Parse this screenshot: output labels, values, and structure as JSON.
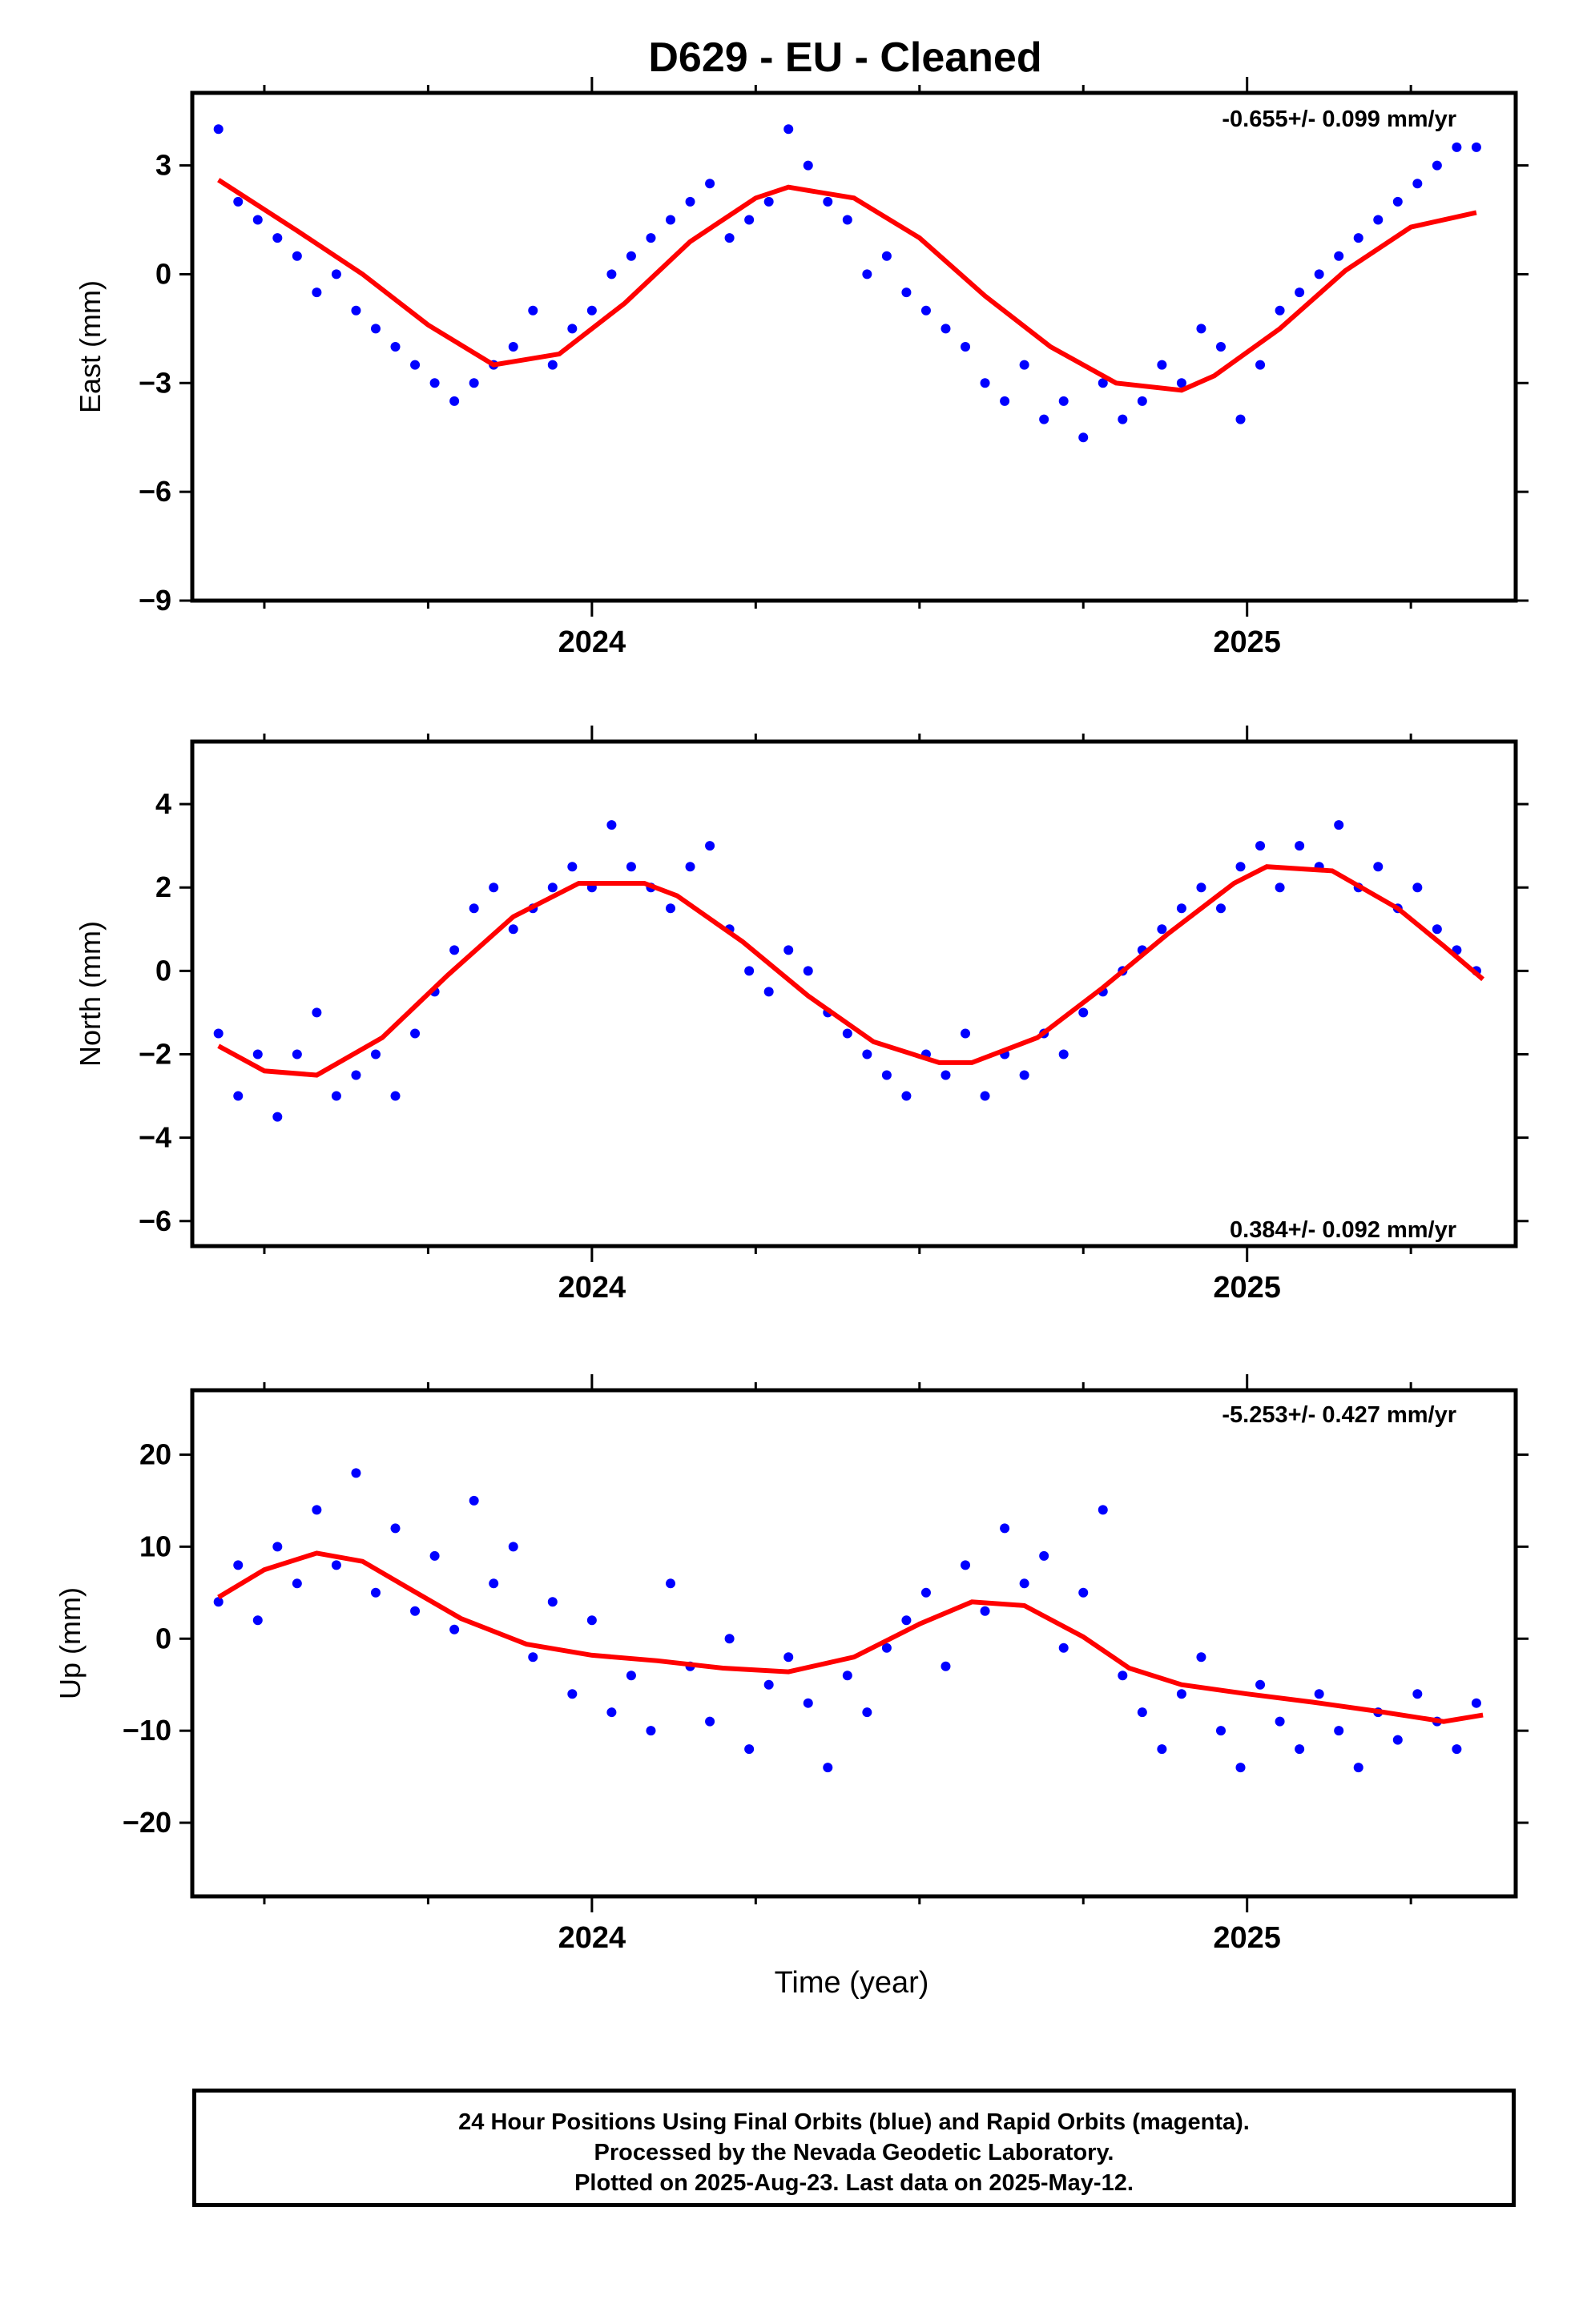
{
  "title": "D629  - EU - Cleaned",
  "footer": {
    "line1": "24 Hour Positions Using Final Orbits (blue) and Rapid Orbits (magenta).",
    "line2": "Processed by the Nevada Geodetic Laboratory.",
    "line3": "Plotted on 2025-Aug-23. Last data on 2025-May-12."
  },
  "colors": {
    "data": "#0000ff",
    "fit": "#ff0000",
    "axis": "#000000"
  },
  "chart_data": [
    {
      "type": "scatter",
      "ylabel": "East (mm)",
      "xlabel": "",
      "rate": "-0.655+/- 0.099 mm/yr",
      "rate_position": "top-right",
      "xlim": [
        2023.39,
        2025.41
      ],
      "ylim": [
        -9,
        5
      ],
      "yticks": [
        3,
        0,
        -3,
        -6,
        -9
      ],
      "ytick_labels": [
        "3",
        "0",
        "−3",
        "−6",
        "−9"
      ],
      "xticks": [
        2024,
        2025
      ],
      "xtick_labels": [
        "2024",
        "2025"
      ],
      "points": {
        "x": [
          2023.43,
          2023.46,
          2023.49,
          2023.52,
          2023.55,
          2023.58,
          2023.61,
          2023.64,
          2023.67,
          2023.7,
          2023.73,
          2023.76,
          2023.79,
          2023.82,
          2023.85,
          2023.88,
          2023.91,
          2023.94,
          2023.97,
          2024.0,
          2024.03,
          2024.06,
          2024.09,
          2024.12,
          2024.15,
          2024.18,
          2024.21,
          2024.24,
          2024.27,
          2024.3,
          2024.33,
          2024.36,
          2024.39,
          2024.42,
          2024.45,
          2024.48,
          2024.51,
          2024.54,
          2024.57,
          2024.6,
          2024.63,
          2024.66,
          2024.69,
          2024.72,
          2024.75,
          2024.78,
          2024.81,
          2024.84,
          2024.87,
          2024.9,
          2024.93,
          2024.96,
          2024.99,
          2025.02,
          2025.05,
          2025.08,
          2025.11,
          2025.14,
          2025.17,
          2025.2,
          2025.23,
          2025.26,
          2025.29,
          2025.32,
          2025.35
        ],
        "y": [
          4.0,
          2.0,
          1.5,
          1.0,
          0.5,
          -0.5,
          0.0,
          -1.0,
          -1.5,
          -2.0,
          -2.5,
          -3.0,
          -3.5,
          -3.0,
          -2.5,
          -2.0,
          -1.0,
          -2.5,
          -1.5,
          -1.0,
          0.0,
          0.5,
          1.0,
          1.5,
          2.0,
          2.5,
          1.0,
          1.5,
          2.0,
          4.0,
          3.0,
          2.0,
          1.5,
          0.0,
          0.5,
          -0.5,
          -1.0,
          -1.5,
          -2.0,
          -3.0,
          -3.5,
          -2.5,
          -4.0,
          -3.5,
          -4.5,
          -3.0,
          -4.0,
          -3.5,
          -2.5,
          -3.0,
          -1.5,
          -2.0,
          -4.0,
          -2.5,
          -1.0,
          -0.5,
          0.0,
          0.5,
          1.0,
          1.5,
          2.0,
          2.5,
          3.0,
          3.5,
          3.5
        ]
      },
      "fit": {
        "x": [
          2023.43,
          2023.55,
          2023.65,
          2023.75,
          2023.85,
          2023.95,
          2024.05,
          2024.15,
          2024.25,
          2024.3,
          2024.4,
          2024.5,
          2024.6,
          2024.7,
          2024.8,
          2024.9,
          2024.95,
          2025.05,
          2025.15,
          2025.25,
          2025.35
        ],
        "y": [
          2.6,
          1.2,
          0.0,
          -1.4,
          -2.5,
          -2.2,
          -0.8,
          0.9,
          2.1,
          2.4,
          2.1,
          1.0,
          -0.6,
          -2.0,
          -3.0,
          -3.2,
          -2.8,
          -1.5,
          0.1,
          1.3,
          1.7
        ]
      }
    },
    {
      "type": "scatter",
      "ylabel": "North (mm)",
      "xlabel": "",
      "rate": "0.384+/- 0.092 mm/yr",
      "rate_position": "bottom-right",
      "xlim": [
        2023.39,
        2025.41
      ],
      "ylim": [
        -6.6,
        5.5
      ],
      "yticks": [
        4,
        2,
        0,
        -2,
        -4,
        -6
      ],
      "ytick_labels": [
        "4",
        "2",
        "0",
        "−2",
        "−4",
        "−6"
      ],
      "xticks": [
        2024,
        2025
      ],
      "xtick_labels": [
        "2024",
        "2025"
      ],
      "points": {
        "x": [
          2023.43,
          2023.46,
          2023.49,
          2023.52,
          2023.55,
          2023.58,
          2023.61,
          2023.64,
          2023.67,
          2023.7,
          2023.73,
          2023.76,
          2023.79,
          2023.82,
          2023.85,
          2023.88,
          2023.91,
          2023.94,
          2023.97,
          2024.0,
          2024.03,
          2024.06,
          2024.09,
          2024.12,
          2024.15,
          2024.18,
          2024.21,
          2024.24,
          2024.27,
          2024.3,
          2024.33,
          2024.36,
          2024.39,
          2024.42,
          2024.45,
          2024.48,
          2024.51,
          2024.54,
          2024.57,
          2024.6,
          2024.63,
          2024.66,
          2024.69,
          2024.72,
          2024.75,
          2024.78,
          2024.81,
          2024.84,
          2024.87,
          2024.9,
          2024.93,
          2024.96,
          2024.99,
          2025.02,
          2025.05,
          2025.08,
          2025.11,
          2025.14,
          2025.17,
          2025.2,
          2025.23,
          2025.26,
          2025.29,
          2025.32,
          2025.35
        ],
        "y": [
          -1.5,
          -3.0,
          -2.0,
          -3.5,
          -2.0,
          -1.0,
          -3.0,
          -2.5,
          -2.0,
          -3.0,
          -1.5,
          -0.5,
          0.5,
          1.5,
          2.0,
          1.0,
          1.5,
          2.0,
          2.5,
          2.0,
          3.5,
          2.5,
          2.0,
          1.5,
          2.5,
          3.0,
          1.0,
          0.0,
          -0.5,
          0.5,
          0.0,
          -1.0,
          -1.5,
          -2.0,
          -2.5,
          -3.0,
          -2.0,
          -2.5,
          -1.5,
          -3.0,
          -2.0,
          -2.5,
          -1.5,
          -2.0,
          -1.0,
          -0.5,
          0.0,
          0.5,
          1.0,
          1.5,
          2.0,
          1.5,
          2.5,
          3.0,
          2.0,
          3.0,
          2.5,
          3.5,
          2.0,
          2.5,
          1.5,
          2.0,
          1.0,
          0.5,
          0.0
        ]
      },
      "fit": {
        "x": [
          2023.43,
          2023.5,
          2023.58,
          2023.68,
          2023.78,
          2023.88,
          2023.98,
          2024.08,
          2024.13,
          2024.23,
          2024.33,
          2024.43,
          2024.53,
          2024.58,
          2024.68,
          2024.78,
          2024.88,
          2024.98,
          2025.03,
          2025.13,
          2025.23,
          2025.3,
          2025.36
        ],
        "y": [
          -1.8,
          -2.4,
          -2.5,
          -1.6,
          -0.1,
          1.3,
          2.1,
          2.1,
          1.8,
          0.7,
          -0.6,
          -1.7,
          -2.2,
          -2.2,
          -1.6,
          -0.4,
          0.9,
          2.1,
          2.5,
          2.4,
          1.5,
          0.6,
          -0.2
        ]
      }
    },
    {
      "type": "scatter",
      "ylabel": "Up (mm)",
      "xlabel": "Time (year)",
      "rate": "-5.253+/- 0.427 mm/yr",
      "rate_position": "top-right",
      "xlim": [
        2023.39,
        2025.41
      ],
      "ylim": [
        -28,
        27
      ],
      "yticks": [
        20,
        10,
        0,
        -10,
        -20
      ],
      "ytick_labels": [
        "20",
        "10",
        "0",
        "−10",
        "−20"
      ],
      "xticks": [
        2024,
        2025
      ],
      "xtick_labels": [
        "2024",
        "2025"
      ],
      "points": {
        "x": [
          2023.43,
          2023.46,
          2023.49,
          2023.52,
          2023.55,
          2023.58,
          2023.61,
          2023.64,
          2023.67,
          2023.7,
          2023.73,
          2023.76,
          2023.79,
          2023.82,
          2023.85,
          2023.88,
          2023.91,
          2023.94,
          2023.97,
          2024.0,
          2024.03,
          2024.06,
          2024.09,
          2024.12,
          2024.15,
          2024.18,
          2024.21,
          2024.24,
          2024.27,
          2024.3,
          2024.33,
          2024.36,
          2024.39,
          2024.42,
          2024.45,
          2024.48,
          2024.51,
          2024.54,
          2024.57,
          2024.6,
          2024.63,
          2024.66,
          2024.69,
          2024.72,
          2024.75,
          2024.78,
          2024.81,
          2024.84,
          2024.87,
          2024.9,
          2024.93,
          2024.96,
          2024.99,
          2025.02,
          2025.05,
          2025.08,
          2025.11,
          2025.14,
          2025.17,
          2025.2,
          2025.23,
          2025.26,
          2025.29,
          2025.32,
          2025.35
        ],
        "y": [
          4,
          8,
          2,
          10,
          6,
          14,
          8,
          18,
          5,
          12,
          3,
          9,
          1,
          15,
          6,
          10,
          -2,
          4,
          -6,
          2,
          -8,
          -4,
          -10,
          6,
          -3,
          -9,
          0,
          -12,
          -5,
          -2,
          -7,
          -14,
          -4,
          -8,
          -1,
          2,
          5,
          -3,
          8,
          3,
          12,
          6,
          9,
          -1,
          5,
          14,
          -4,
          -8,
          -12,
          -6,
          -2,
          -10,
          -14,
          -5,
          -9,
          -12,
          -6,
          -10,
          -14,
          -8,
          -11,
          -6,
          -9,
          -12,
          -7
        ]
      },
      "fit": {
        "x": [
          2023.43,
          2023.5,
          2023.58,
          2023.65,
          2023.72,
          2023.8,
          2023.9,
          2024.0,
          2024.1,
          2024.2,
          2024.3,
          2024.4,
          2024.5,
          2024.58,
          2024.66,
          2024.75,
          2024.82,
          2024.9,
          2025.0,
          2025.1,
          2025.2,
          2025.3,
          2025.36
        ],
        "y": [
          4.5,
          7.5,
          9.3,
          8.4,
          5.5,
          2.2,
          -0.6,
          -1.8,
          -2.4,
          -3.2,
          -3.6,
          -2.0,
          1.6,
          4.0,
          3.6,
          0.2,
          -3.2,
          -5.0,
          -6.0,
          -6.9,
          -7.9,
          -9.0,
          -8.3
        ]
      }
    }
  ]
}
